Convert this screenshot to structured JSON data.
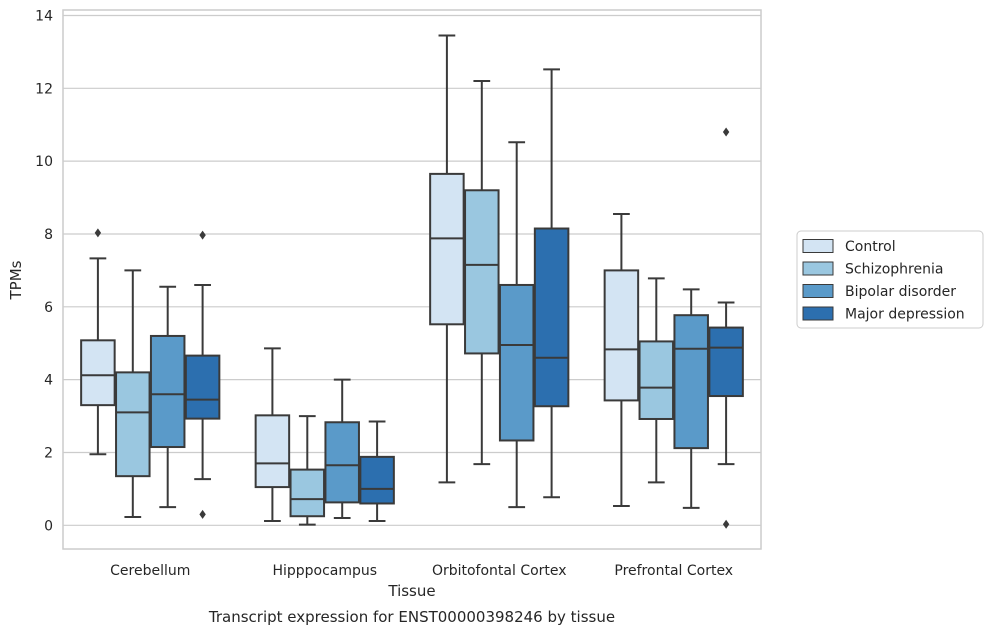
{
  "chart_data": {
    "type": "box",
    "title": "Transcript expression for ENST00000398246 by tissue",
    "xlabel": "Tissue",
    "ylabel": "TPMs",
    "ylim": [
      -0.65,
      14.15
    ],
    "yticks": [
      0,
      2,
      4,
      6,
      8,
      10,
      12,
      14
    ],
    "grid": "horizontal",
    "legend_position": "right",
    "categories": [
      "Cerebellum",
      "Hipppocampus",
      "Orbitofontal Cortex",
      "Prefrontal Cortex"
    ],
    "series": [
      {
        "name": "Control",
        "color": "#d3e4f3",
        "boxes": [
          {
            "whislo": 1.95,
            "q1": 3.3,
            "med": 4.12,
            "q3": 5.08,
            "whishi": 7.33,
            "fliers": [
              8.03
            ]
          },
          {
            "whislo": 0.12,
            "q1": 1.05,
            "med": 1.7,
            "q3": 3.02,
            "whishi": 4.86,
            "fliers": []
          },
          {
            "whislo": 1.18,
            "q1": 5.52,
            "med": 7.88,
            "q3": 9.65,
            "whishi": 13.45,
            "fliers": []
          },
          {
            "whislo": 0.53,
            "q1": 3.43,
            "med": 4.83,
            "q3": 7.0,
            "whishi": 8.55,
            "fliers": []
          }
        ]
      },
      {
        "name": "Schizophrenia",
        "color": "#9ac7e0",
        "boxes": [
          {
            "whislo": 0.23,
            "q1": 1.35,
            "med": 3.1,
            "q3": 4.2,
            "whishi": 7.0,
            "fliers": []
          },
          {
            "whislo": 0.02,
            "q1": 0.25,
            "med": 0.72,
            "q3": 1.53,
            "whishi": 3.0,
            "fliers": []
          },
          {
            "whislo": 1.68,
            "q1": 4.72,
            "med": 7.15,
            "q3": 9.2,
            "whishi": 12.2,
            "fliers": []
          },
          {
            "whislo": 1.18,
            "q1": 2.92,
            "med": 3.78,
            "q3": 5.05,
            "whishi": 6.78,
            "fliers": []
          }
        ]
      },
      {
        "name": "Bipolar disorder",
        "color": "#5a9ac9",
        "boxes": [
          {
            "whislo": 0.5,
            "q1": 2.15,
            "med": 3.6,
            "q3": 5.2,
            "whishi": 6.55,
            "fliers": []
          },
          {
            "whislo": 0.2,
            "q1": 0.63,
            "med": 1.65,
            "q3": 2.83,
            "whishi": 4.0,
            "fliers": []
          },
          {
            "whislo": 0.5,
            "q1": 2.33,
            "med": 4.95,
            "q3": 6.6,
            "whishi": 10.52,
            "fliers": []
          },
          {
            "whislo": 0.48,
            "q1": 2.12,
            "med": 4.85,
            "q3": 5.77,
            "whishi": 6.48,
            "fliers": []
          }
        ]
      },
      {
        "name": "Major depression",
        "color": "#2c6faf",
        "boxes": [
          {
            "whislo": 1.27,
            "q1": 2.93,
            "med": 3.45,
            "q3": 4.66,
            "whishi": 6.6,
            "fliers": [
              7.97,
              0.3
            ]
          },
          {
            "whislo": 0.12,
            "q1": 0.6,
            "med": 1.0,
            "q3": 1.88,
            "whishi": 2.85,
            "fliers": []
          },
          {
            "whislo": 0.77,
            "q1": 3.27,
            "med": 4.6,
            "q3": 8.15,
            "whishi": 12.52,
            "fliers": []
          },
          {
            "whislo": 1.68,
            "q1": 3.55,
            "med": 4.88,
            "q3": 5.43,
            "whishi": 6.12,
            "fliers": [
              10.8,
              0.03
            ]
          }
        ]
      }
    ]
  }
}
